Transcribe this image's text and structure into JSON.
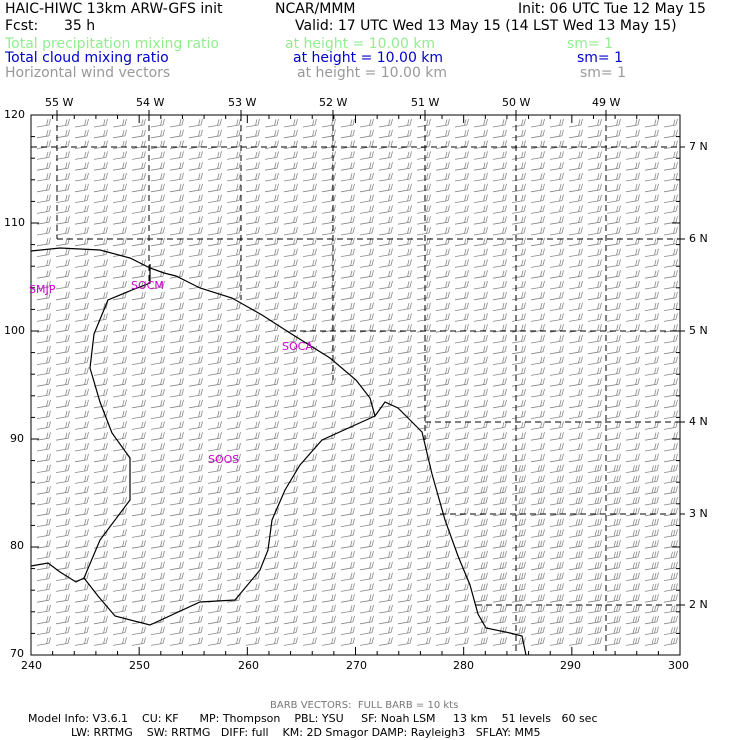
{
  "header": {
    "model": "HAIC-HIWC 13km ARW-GFS init",
    "org": "NCAR/MMM",
    "init": "Init: 06 UTC Tue 12 May 15",
    "fcst_label": "Fcst:",
    "fcst_value": "35 h",
    "valid": "Valid: 17 UTC Wed 13 May 15 (14 LST Wed 13 May 15)"
  },
  "fields": [
    {
      "name": "Total precipitation mixing ratio",
      "height": "at height = 10.00 km",
      "sm": "sm= 1",
      "color": "#90ee90"
    },
    {
      "name": "Total cloud mixing ratio",
      "height": "at height = 10.00 km",
      "sm": "sm= 1",
      "color": "#0000cc"
    },
    {
      "name": "Horizontal wind vectors",
      "height": "at height = 10.00 km",
      "sm": "sm= 1",
      "color": "#999999"
    }
  ],
  "map": {
    "x_ticks": [
      "240",
      "250",
      "260",
      "270",
      "280",
      "290",
      "300"
    ],
    "y_ticks": [
      "70",
      "80",
      "90",
      "100",
      "110",
      "120"
    ],
    "lon_labels": [
      "55 W",
      "54 W",
      "53 W",
      "52 W",
      "51 W",
      "50 W",
      "49 W"
    ],
    "lat_labels": [
      "7 N",
      "6 N",
      "5 N",
      "4 N",
      "3 N",
      "2 N"
    ],
    "stations": [
      "SMJP",
      "SOCM",
      "SOCA",
      "SOOS"
    ],
    "colors": {
      "station": "#cc00cc",
      "barb": "#888888",
      "coast": "#000000",
      "grid": "#000000"
    }
  },
  "footer": {
    "barb_note": "BARB VECTORS:  FULL BARB = 10 kts",
    "model_info": "Model Info: V3.6.1    CU: KF      MP: Thompson    PBL: YSU     SF: Noah LSM     13 km    51 levels   60 sec",
    "model_info2": "LW: RRTMG    SW: RRTMG   DIFF: full    KM: 2D Smagor DAMP: Rayleigh3   SFLAY: MM5"
  }
}
